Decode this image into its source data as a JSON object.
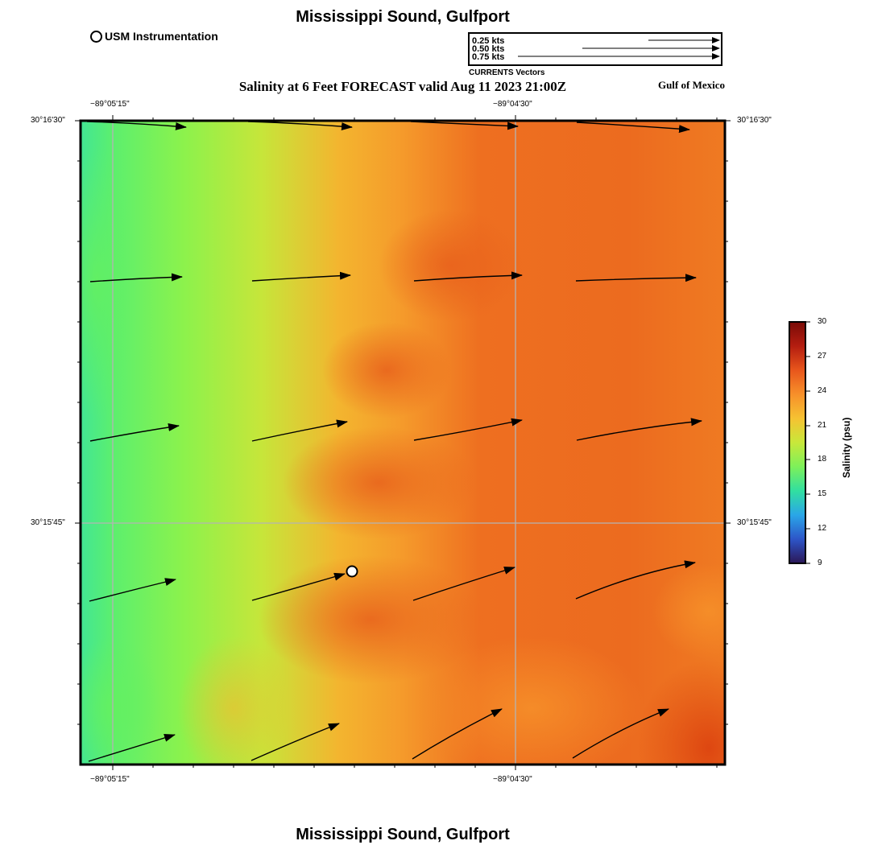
{
  "header": {
    "title": "Mississippi Sound, Gulfport",
    "subtitle": "Salinity at 6 Feet FORECAST valid Aug 11 2023 21:00Z",
    "region": "Gulf of Mexico",
    "footer_title": "Mississippi Sound, Gulfport"
  },
  "legend": {
    "instrument_label": "USM Instrumentation",
    "vector_caption": "CURRENTS Vectors",
    "vector_scale": [
      {
        "label": "0.25 kts",
        "speed": 0.25
      },
      {
        "label": "0.50 kts",
        "speed": 0.5
      },
      {
        "label": "0.75 kts",
        "speed": 0.75
      }
    ]
  },
  "axes": {
    "top_labels": [
      "−89°05'15\"",
      "−89°04'30\""
    ],
    "bottom_labels": [
      "−89°05'15\"",
      "−89°04'30\""
    ],
    "left_labels": [
      "30°16'30\"",
      "30°15'45\""
    ],
    "right_labels": [
      "30°16'30\"",
      "30°15'45\""
    ]
  },
  "colorbar": {
    "title": "Salinity (psu)",
    "ticks": [
      "30",
      "27",
      "24",
      "21",
      "18",
      "15",
      "12",
      "9"
    ],
    "range": [
      9,
      30
    ],
    "colors": [
      "#2b1656",
      "#2d55c8",
      "#2aa6e8",
      "#31dfa0",
      "#7df05a",
      "#c8e83a",
      "#f6c232",
      "#f7902a",
      "#e8561c",
      "#b41d10",
      "#7a0b07"
    ]
  },
  "map": {
    "colors": {
      "low": "#3fe89a",
      "mid_low": "#7ef452",
      "mid": "#c5e83b",
      "mid_high": "#f6a02b",
      "high": "#ee6a1f",
      "max": "#e24e12"
    },
    "instrument_marker": {
      "label": "USM Instrumentation"
    }
  }
}
